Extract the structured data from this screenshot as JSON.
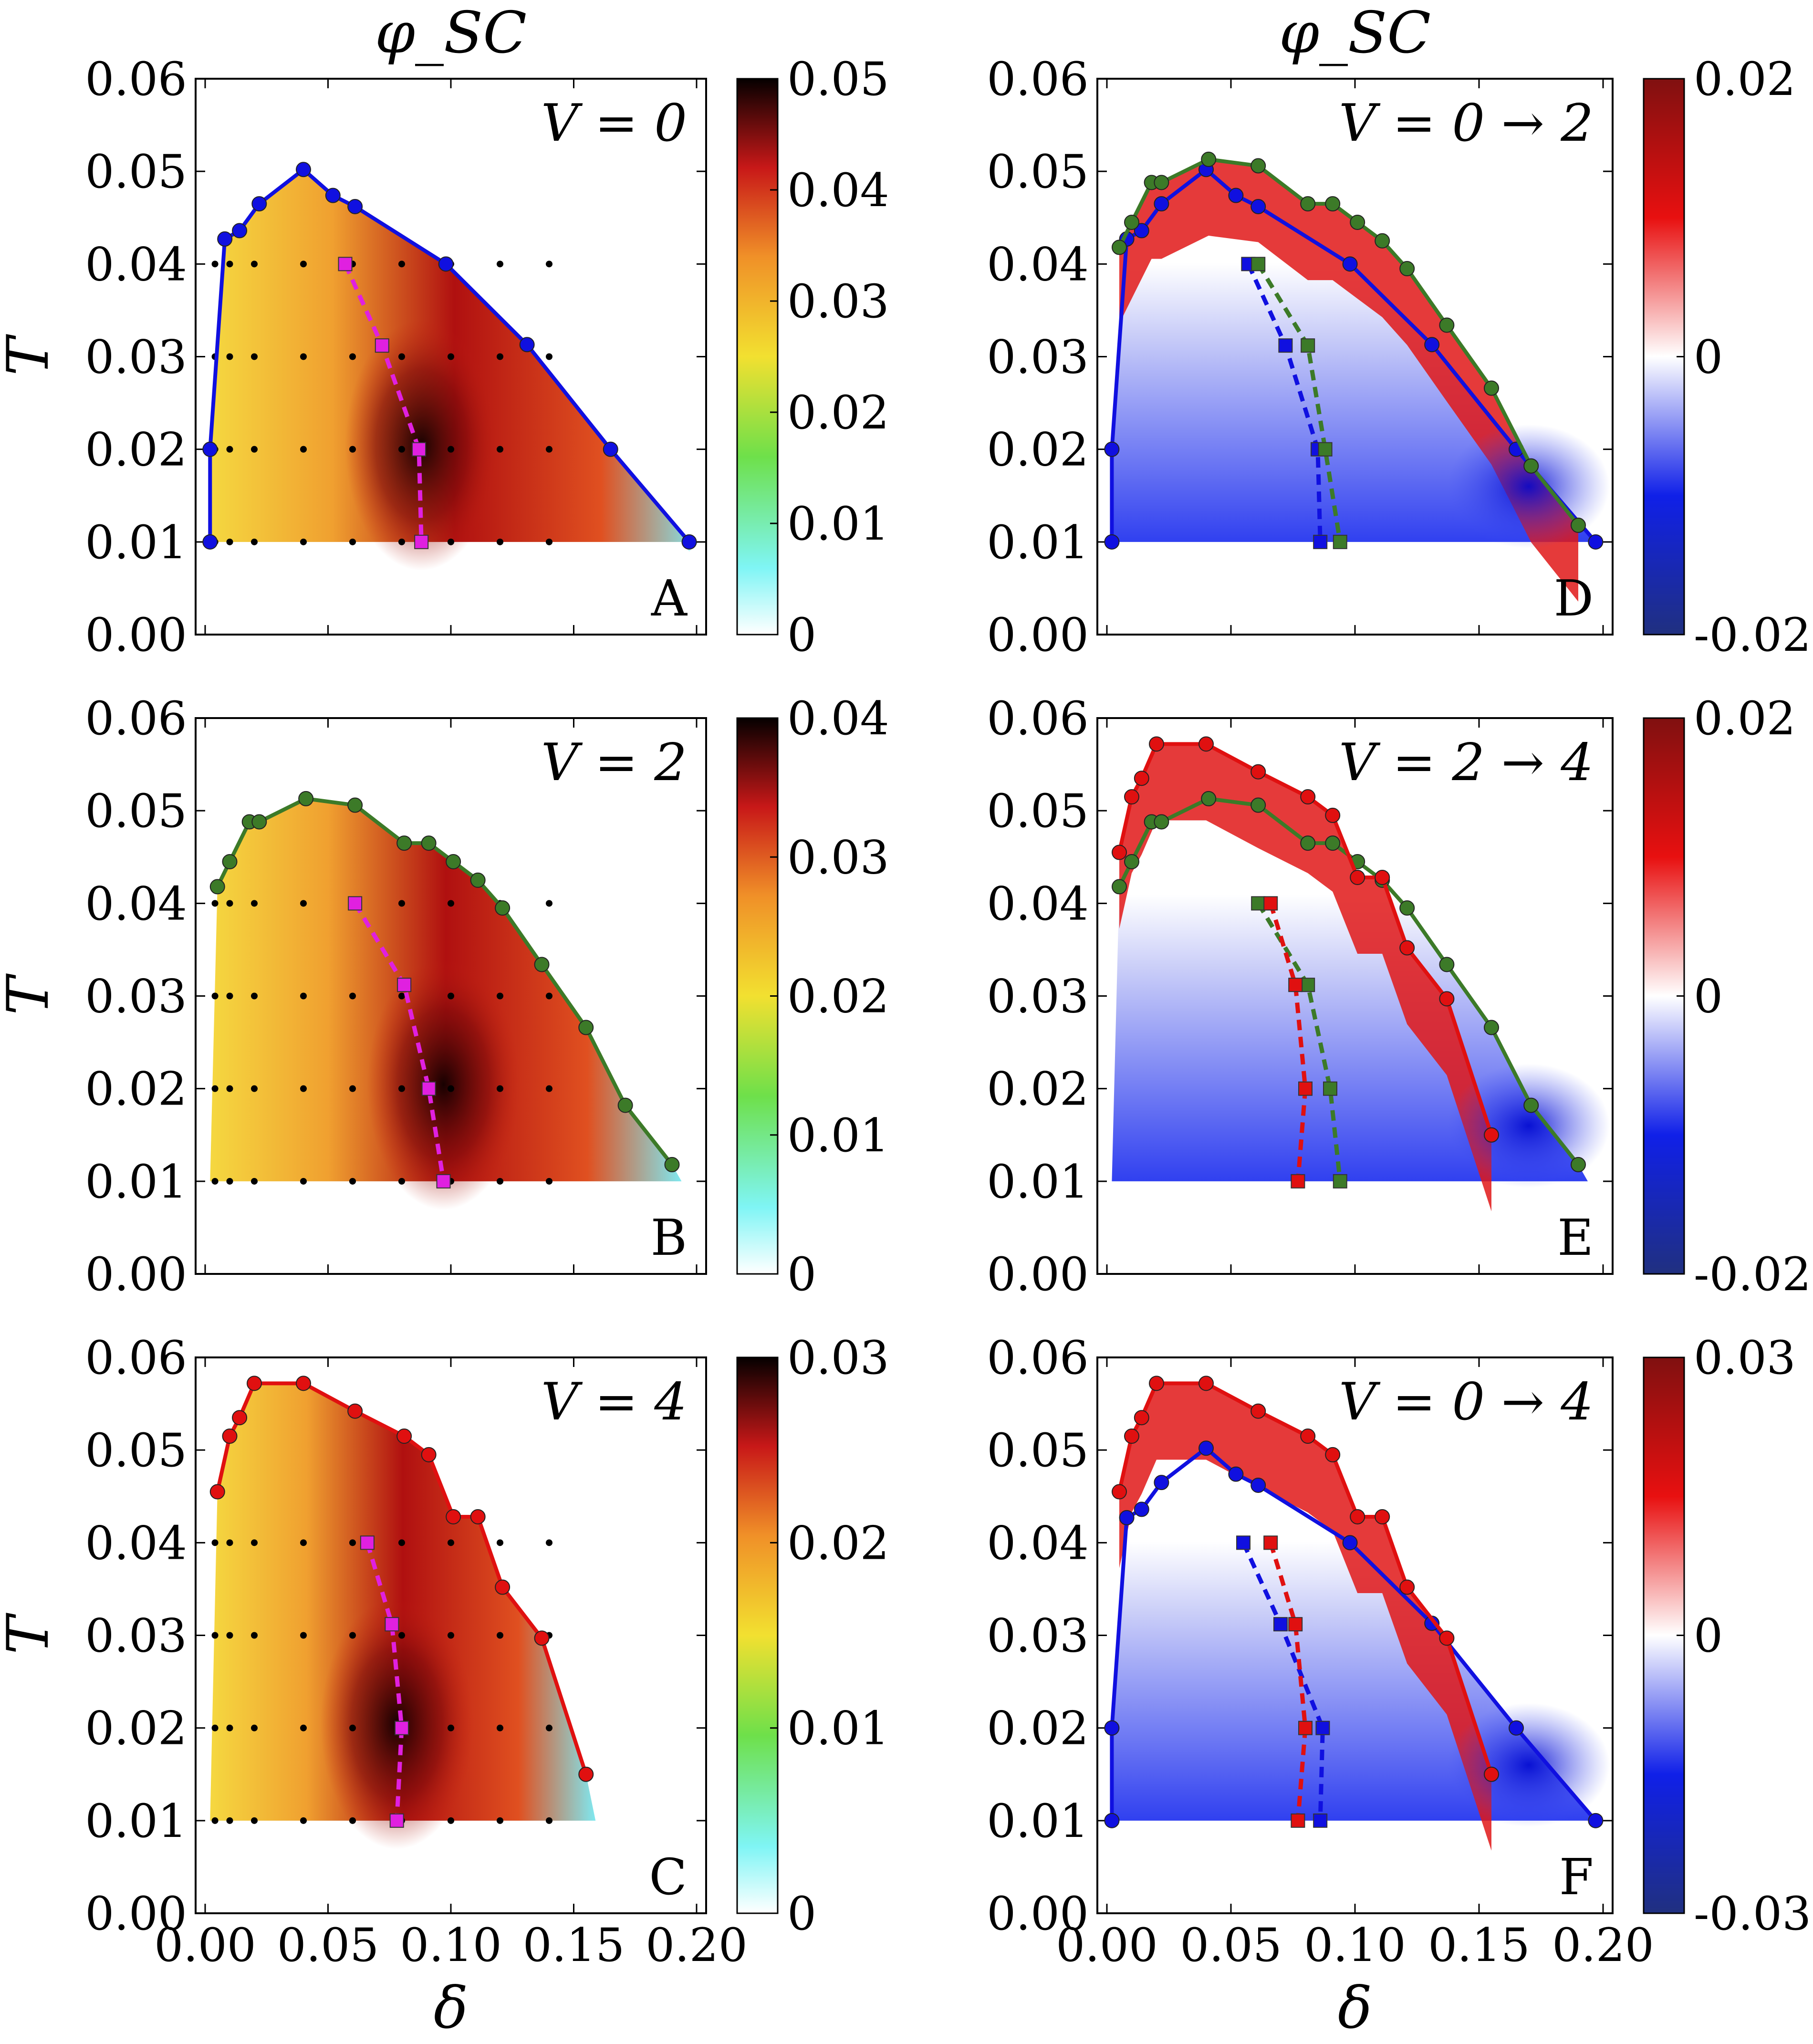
{
  "figure": {
    "top_titles": [
      "φ_SC",
      "φ_SC"
    ],
    "x_axis_label": "δ",
    "y_axis_label": "T",
    "x_ticks": [
      "0.00",
      "0.05",
      "0.10",
      "0.15",
      "0.20"
    ],
    "y_ticks": [
      "0.00",
      "0.01",
      "0.02",
      "0.03",
      "0.04",
      "0.05",
      "0.06"
    ]
  },
  "colors": {
    "blue": "#1010e0",
    "green": "#3c7a28",
    "red": "#e01010",
    "magenta": "#e020e0",
    "grid_dot": "#000000"
  },
  "chart_data": [
    {
      "id": "A",
      "type": "heatmap",
      "panel_letter": "A",
      "v_label": "V = 0",
      "colormap": "sequential",
      "colorbar_ticks": [
        "0",
        "0.01",
        "0.02",
        "0.03",
        "0.04",
        "0.05"
      ],
      "colorbar_range": [
        0,
        0.05
      ],
      "xlim": [
        0,
        0.2
      ],
      "ylim": [
        0,
        0.06
      ],
      "xlabel": "δ",
      "ylabel": "T",
      "series": [
        {
          "name": "Tc V=0",
          "color": "blue",
          "style": "solid",
          "marker": "circle",
          "x": [
            0.002,
            0.002,
            0.008,
            0.014,
            0.022,
            0.04,
            0.052,
            0.061,
            0.098,
            0.131,
            0.165,
            0.197
          ],
          "y": [
            0.01,
            0.02,
            0.0427,
            0.0436,
            0.0465,
            0.0502,
            0.0474,
            0.0462,
            0.04,
            0.0313,
            0.02,
            0.01
          ]
        },
        {
          "name": "max T V=0",
          "color": "magenta",
          "style": "dashed",
          "marker": "square",
          "x": [
            0.057,
            0.072,
            0.087,
            0.088
          ],
          "y": [
            0.04,
            0.0312,
            0.02,
            0.01
          ]
        }
      ]
    },
    {
      "id": "B",
      "type": "heatmap",
      "panel_letter": "B",
      "v_label": "V = 2",
      "colormap": "sequential",
      "colorbar_ticks": [
        "0",
        "0.01",
        "0.02",
        "0.03",
        "0.04"
      ],
      "colorbar_range": [
        0,
        0.04
      ],
      "xlim": [
        0,
        0.2
      ],
      "ylim": [
        0,
        0.06
      ],
      "series": [
        {
          "name": "Tc V=2",
          "color": "green",
          "style": "solid",
          "marker": "circle",
          "x": [
            0.005,
            0.01,
            0.018,
            0.022,
            0.041,
            0.061,
            0.081,
            0.091,
            0.101,
            0.111,
            0.121,
            0.137,
            0.155,
            0.171,
            0.19
          ],
          "y": [
            0.0418,
            0.0445,
            0.0488,
            0.0488,
            0.0513,
            0.0506,
            0.0465,
            0.0465,
            0.0445,
            0.0425,
            0.0395,
            0.0334,
            0.0266,
            0.0182,
            0.0118
          ]
        },
        {
          "name": "max T V=2",
          "color": "magenta",
          "style": "dashed",
          "marker": "square",
          "x": [
            0.061,
            0.081,
            0.091,
            0.097
          ],
          "y": [
            0.04,
            0.0312,
            0.02,
            0.01
          ]
        }
      ]
    },
    {
      "id": "C",
      "type": "heatmap",
      "panel_letter": "C",
      "v_label": "V = 4",
      "colormap": "sequential",
      "colorbar_ticks": [
        "0",
        "0.01",
        "0.02",
        "0.03"
      ],
      "colorbar_range": [
        0,
        0.03
      ],
      "xlim": [
        0,
        0.2
      ],
      "ylim": [
        0,
        0.06
      ],
      "series": [
        {
          "name": "Tc V=4",
          "color": "red",
          "style": "solid",
          "marker": "circle",
          "x": [
            0.005,
            0.01,
            0.014,
            0.02,
            0.04,
            0.061,
            0.081,
            0.091,
            0.101,
            0.111,
            0.121,
            0.137,
            0.155
          ],
          "y": [
            0.0455,
            0.0515,
            0.0535,
            0.0572,
            0.0572,
            0.0542,
            0.0515,
            0.0495,
            0.0428,
            0.0428,
            0.0352,
            0.0297,
            0.015
          ]
        },
        {
          "name": "max T V=4",
          "color": "magenta",
          "style": "dashed",
          "marker": "square",
          "x": [
            0.066,
            0.076,
            0.08,
            0.078
          ],
          "y": [
            0.04,
            0.0312,
            0.02,
            0.01
          ]
        }
      ]
    },
    {
      "id": "D",
      "type": "heatmap",
      "panel_letter": "D",
      "v_label": "V = 0 → 2",
      "colormap": "diverging",
      "colorbar_ticks": [
        "-0.02",
        "0",
        "0.02"
      ],
      "colorbar_range": [
        -0.02,
        0.02
      ],
      "xlim": [
        0,
        0.2
      ],
      "ylim": [
        0,
        0.06
      ],
      "series": [
        {
          "name": "Tc V=0",
          "ref": "A.0"
        },
        {
          "name": "Tc V=2",
          "ref": "B.0"
        },
        {
          "name": "max T V=0",
          "color": "blue",
          "style": "dashed",
          "marker": "square",
          "x": [
            0.057,
            0.072,
            0.085,
            0.086
          ],
          "y": [
            0.04,
            0.0312,
            0.02,
            0.01
          ]
        },
        {
          "name": "max T V=2",
          "color": "green",
          "style": "dashed",
          "marker": "square",
          "x": [
            0.061,
            0.081,
            0.088,
            0.094
          ],
          "y": [
            0.04,
            0.0312,
            0.02,
            0.01
          ]
        }
      ]
    },
    {
      "id": "E",
      "type": "heatmap",
      "panel_letter": "E",
      "v_label": "V = 2 → 4",
      "colormap": "diverging",
      "colorbar_ticks": [
        "-0.02",
        "0",
        "0.02"
      ],
      "colorbar_range": [
        -0.02,
        0.02
      ],
      "xlim": [
        0,
        0.2
      ],
      "ylim": [
        0,
        0.06
      ],
      "series": [
        {
          "name": "Tc V=2",
          "ref": "B.0"
        },
        {
          "name": "Tc V=4",
          "ref": "C.0"
        },
        {
          "name": "max T V=2",
          "color": "green",
          "style": "dashed",
          "marker": "square",
          "x": [
            0.061,
            0.081,
            0.09,
            0.094
          ],
          "y": [
            0.04,
            0.0312,
            0.02,
            0.01
          ]
        },
        {
          "name": "max T V=4",
          "color": "red",
          "style": "dashed",
          "marker": "square",
          "x": [
            0.066,
            0.076,
            0.08,
            0.077
          ],
          "y": [
            0.04,
            0.0312,
            0.02,
            0.01
          ]
        }
      ]
    },
    {
      "id": "F",
      "type": "heatmap",
      "panel_letter": "F",
      "v_label": "V = 0 → 4",
      "colormap": "diverging",
      "colorbar_ticks": [
        "-0.03",
        "0",
        "0.03"
      ],
      "colorbar_range": [
        -0.03,
        0.03
      ],
      "xlim": [
        0,
        0.2
      ],
      "ylim": [
        0,
        0.06
      ],
      "series": [
        {
          "name": "Tc V=0",
          "ref": "A.0"
        },
        {
          "name": "Tc V=4",
          "ref": "C.0"
        },
        {
          "name": "max T V=0",
          "color": "blue",
          "style": "dashed",
          "marker": "square",
          "x": [
            0.055,
            0.07,
            0.087,
            0.086
          ],
          "y": [
            0.04,
            0.0312,
            0.02,
            0.01
          ]
        },
        {
          "name": "max T V=4",
          "color": "red",
          "style": "dashed",
          "marker": "square",
          "x": [
            0.066,
            0.076,
            0.08,
            0.077
          ],
          "y": [
            0.04,
            0.0312,
            0.02,
            0.01
          ]
        }
      ]
    }
  ]
}
